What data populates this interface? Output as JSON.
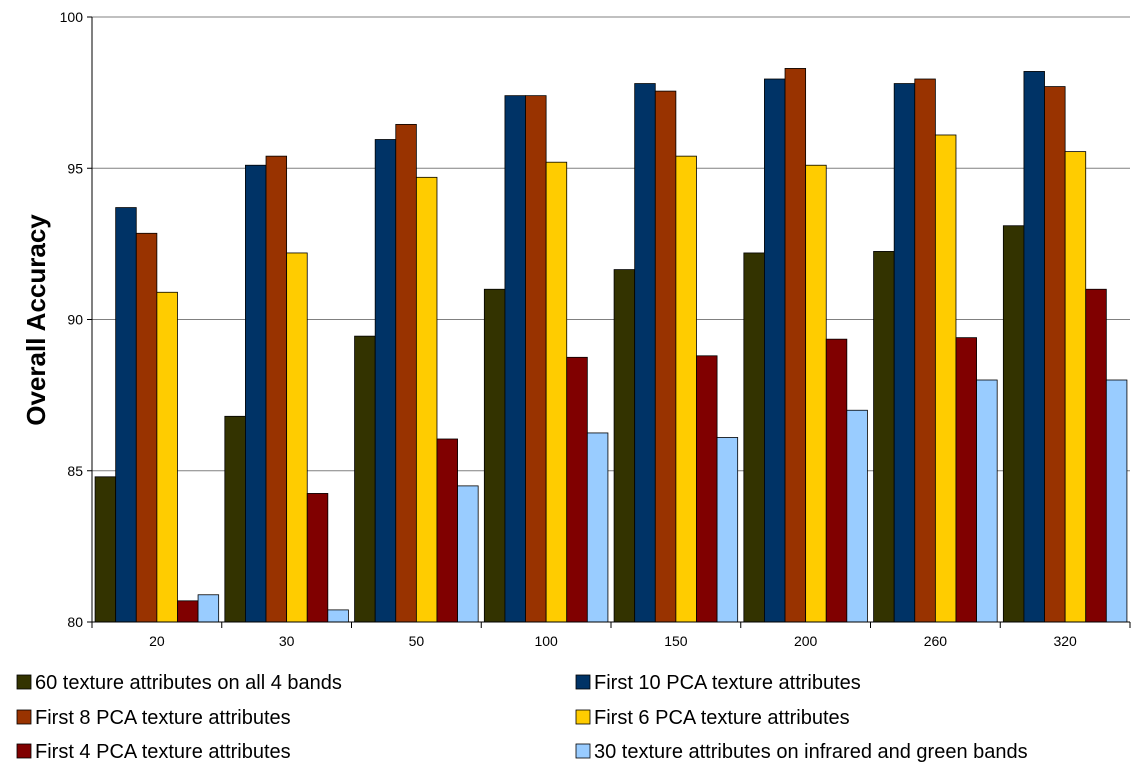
{
  "chart_data": {
    "type": "bar",
    "title": "",
    "xlabel": "",
    "ylabel": "Overall Accuracy",
    "ylim": [
      80,
      100
    ],
    "yticks": [
      80,
      85,
      90,
      95,
      100
    ],
    "grid": true,
    "legend_position": "bottom",
    "categories": [
      "20",
      "30",
      "50",
      "100",
      "150",
      "200",
      "260",
      "320"
    ],
    "series": [
      {
        "name": "60 texture attributes on all 4 bands",
        "color": "#333300",
        "values": [
          84.8,
          86.8,
          89.45,
          91.0,
          91.65,
          92.2,
          92.25,
          93.1
        ]
      },
      {
        "name": "First 10 PCA texture attributes",
        "color": "#003366",
        "values": [
          93.7,
          95.1,
          95.95,
          97.4,
          97.8,
          97.95,
          97.8,
          98.2
        ]
      },
      {
        "name": "First 8 PCA texture attributes",
        "color": "#993300",
        "values": [
          92.85,
          95.4,
          96.45,
          97.4,
          97.55,
          98.3,
          97.95,
          97.7
        ]
      },
      {
        "name": "First 6 PCA texture attributes",
        "color": "#FFCC00",
        "values": [
          90.9,
          92.2,
          94.7,
          95.2,
          95.4,
          95.1,
          96.1,
          95.55
        ]
      },
      {
        "name": "First 4 PCA texture attributes",
        "color": "#800000",
        "values": [
          80.7,
          84.25,
          86.05,
          88.75,
          88.8,
          89.35,
          89.4,
          91.0
        ]
      },
      {
        "name": "30 texture attributes on infrared and green bands",
        "color": "#99CCFF",
        "values": [
          80.9,
          80.4,
          84.5,
          86.25,
          86.1,
          87.0,
          88.0,
          88.0
        ]
      }
    ]
  }
}
